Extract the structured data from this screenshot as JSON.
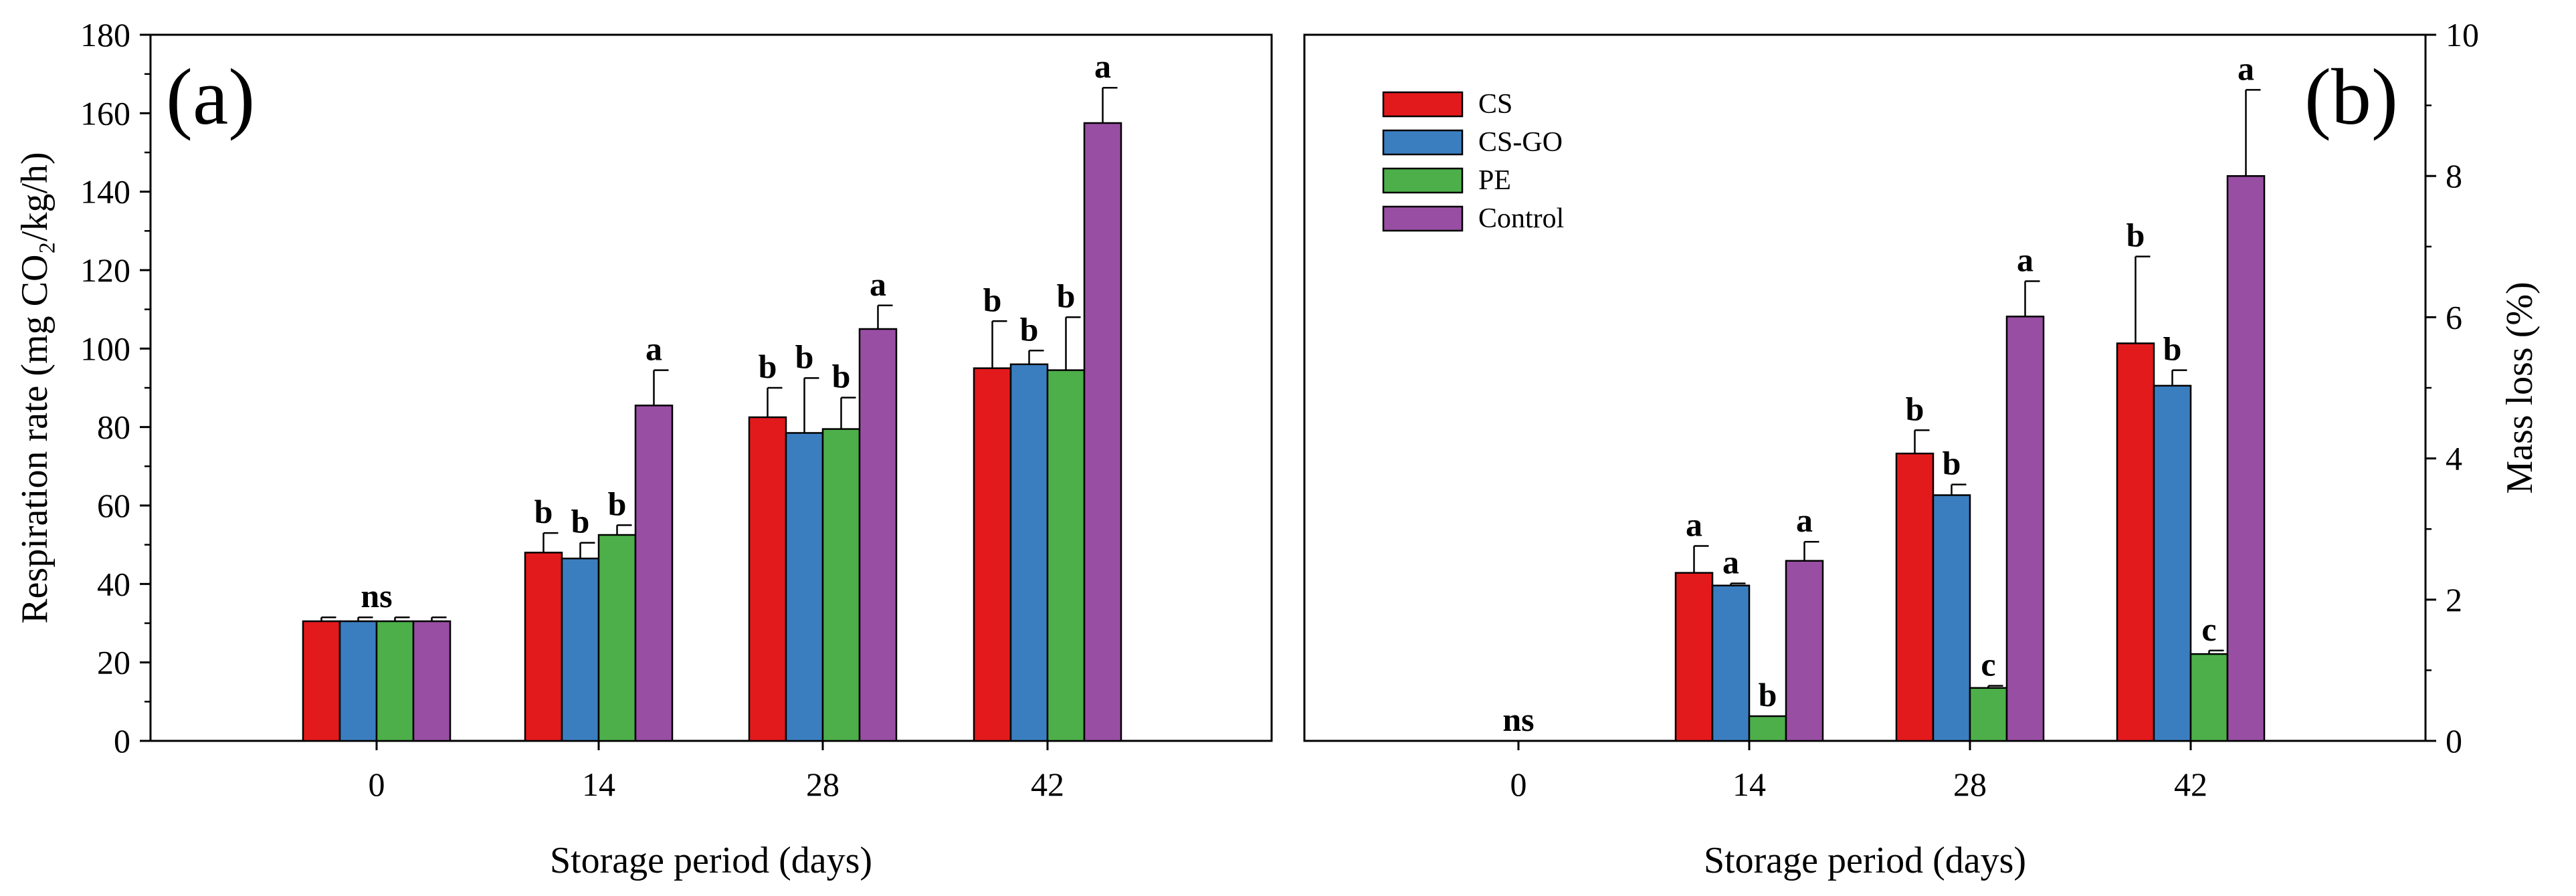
{
  "chart_data": [
    {
      "type": "bar",
      "panel_label": "(a)",
      "title": "",
      "xlabel": "Storage period (days)",
      "ylabel": "Respiration rate (mg CO₂/kg/h)",
      "ylim": [
        0,
        180
      ],
      "yticks": [
        0,
        20,
        40,
        60,
        80,
        100,
        120,
        140,
        160,
        180
      ],
      "categories": [
        "0",
        "14",
        "28",
        "42"
      ],
      "series": [
        {
          "name": "CS",
          "color": "#e31a1c",
          "values": [
            30.5,
            48,
            82.5,
            95
          ],
          "errors": [
            1,
            5,
            7.5,
            12
          ]
        },
        {
          "name": "CS-GO",
          "color": "#3b7ec0",
          "values": [
            30.5,
            46.5,
            78.5,
            96
          ],
          "errors": [
            1,
            4,
            14,
            3.5
          ]
        },
        {
          "name": "PE",
          "color": "#4daf4a",
          "values": [
            30.5,
            52.5,
            79.5,
            94.5
          ],
          "errors": [
            1,
            2.5,
            8,
            13.5
          ]
        },
        {
          "name": "Control",
          "color": "#984ea3",
          "values": [
            30.5,
            85.5,
            105,
            157.5
          ],
          "errors": [
            1,
            9,
            6,
            9
          ]
        }
      ],
      "significance": [
        {
          "category": "0",
          "letters": [
            "ns"
          ]
        },
        {
          "category": "14",
          "letters": [
            "b",
            "b",
            "b",
            "a"
          ]
        },
        {
          "category": "28",
          "letters": [
            "b",
            "b",
            "b",
            "a"
          ]
        },
        {
          "category": "42",
          "letters": [
            "b",
            "b",
            "b",
            "a"
          ]
        }
      ],
      "grid": false
    },
    {
      "type": "bar",
      "panel_label": "(b)",
      "title": "",
      "xlabel": "Storage period (days)",
      "ylabel": "Mass loss (%)",
      "ylim": [
        0,
        10
      ],
      "yticks": [
        0,
        2,
        4,
        6,
        8,
        10
      ],
      "y_axis_side": "right",
      "categories": [
        "0",
        "14",
        "28",
        "42"
      ],
      "series": [
        {
          "name": "CS",
          "color": "#e31a1c",
          "values": [
            0,
            2.38,
            4.07,
            5.63
          ],
          "errors": [
            0,
            0.38,
            0.33,
            1.23
          ]
        },
        {
          "name": "CS-GO",
          "color": "#3b7ec0",
          "values": [
            0,
            2.2,
            3.48,
            5.03
          ],
          "errors": [
            0,
            0.03,
            0.15,
            0.22
          ]
        },
        {
          "name": "PE",
          "color": "#4daf4a",
          "values": [
            0,
            0.35,
            0.75,
            1.23
          ],
          "errors": [
            0,
            0,
            0.03,
            0.05
          ]
        },
        {
          "name": "Control",
          "color": "#984ea3",
          "values": [
            0,
            2.55,
            6.01,
            8.0
          ],
          "errors": [
            0,
            0.27,
            0.5,
            1.22
          ]
        }
      ],
      "significance": [
        {
          "category": "0",
          "letters": [
            "ns"
          ]
        },
        {
          "category": "14",
          "letters": [
            "a",
            "a",
            "b",
            "a"
          ]
        },
        {
          "category": "28",
          "letters": [
            "b",
            "b",
            "c",
            "a"
          ]
        },
        {
          "category": "42",
          "letters": [
            "b",
            "b",
            "c",
            "a"
          ]
        }
      ],
      "legend": {
        "placement": "top-left",
        "entries": [
          "CS",
          "CS-GO",
          "PE",
          "Control"
        ]
      },
      "grid": false
    }
  ]
}
